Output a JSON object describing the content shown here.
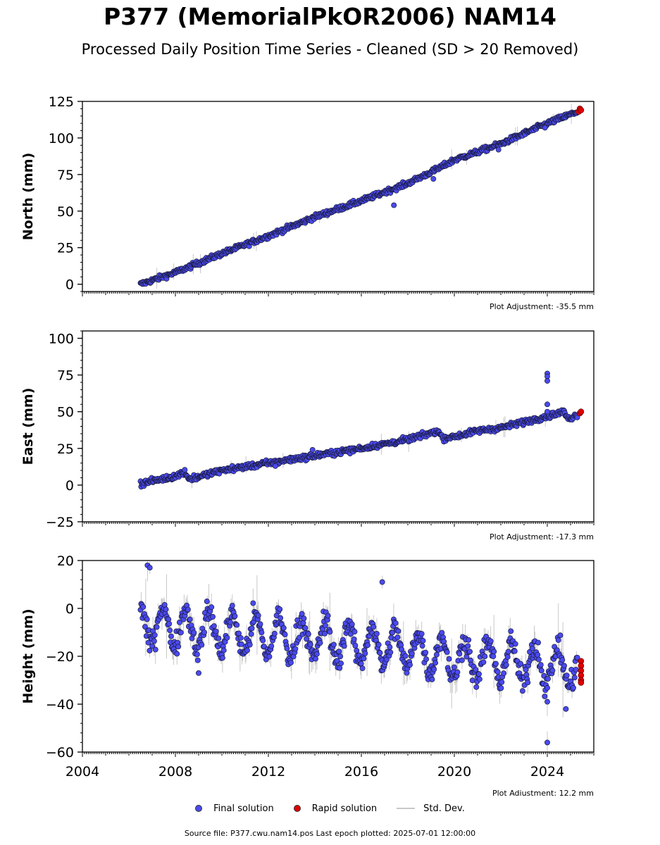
{
  "title": "P377 (MemorialPkOR2006) NAM14",
  "subtitle": "Processed Daily Position Time Series - Cleaned (SD > 20 Removed)",
  "colors": {
    "final": "#4a4af0",
    "rapid": "#e00000",
    "std": "#c8c8c8",
    "edge": "#1a1a3a"
  },
  "legend": {
    "final_label": "Final solution",
    "rapid_label": "Rapid solution",
    "std_label": "Std. Dev."
  },
  "source_note": "Source file: P377.cwu.nam14.pos  Last epoch plotted: 2025-07-01 12:00:00",
  "chart_data": [
    {
      "type": "scatter",
      "ylabel": "North (mm)",
      "xlim": [
        2004,
        2026
      ],
      "ylim": [
        -5,
        125
      ],
      "yticks": [
        0,
        25,
        50,
        75,
        100,
        125
      ],
      "adjustment": "Plot Adjustment: -35.5 mm",
      "show_xticklabels": false,
      "series": [
        {
          "name": "Final solution",
          "trend": [
            [
              2006.5,
              0
            ],
            [
              2008,
              8
            ],
            [
              2010,
              21
            ],
            [
              2012,
              33
            ],
            [
              2014,
              46
            ],
            [
              2016,
              57
            ],
            [
              2018,
              69
            ],
            [
              2019.3,
              79
            ],
            [
              2020,
              85
            ],
            [
              2022,
              96
            ],
            [
              2024,
              110
            ],
            [
              2025.3,
              118
            ]
          ],
          "noise": 1.2,
          "outliers": [
            [
              2017.4,
              54
            ],
            [
              2019.1,
              72
            ],
            [
              2021.9,
              92
            ],
            [
              2023.9,
              107
            ]
          ]
        },
        {
          "name": "Rapid solution",
          "points": [
            [
              2025.35,
              118
            ],
            [
              2025.4,
              120
            ],
            [
              2025.45,
              119
            ]
          ]
        }
      ]
    },
    {
      "type": "scatter",
      "ylabel": "East (mm)",
      "xlim": [
        2004,
        2026
      ],
      "ylim": [
        -25,
        105
      ],
      "yticks": [
        -25,
        0,
        25,
        50,
        75,
        100
      ],
      "adjustment": "Plot Adjustment: -17.3 mm",
      "show_xticklabels": false,
      "series": [
        {
          "name": "Final solution",
          "trend": [
            [
              2006.5,
              1
            ],
            [
              2008,
              6
            ],
            [
              2008.4,
              9
            ],
            [
              2008.6,
              4
            ],
            [
              2010,
              10
            ],
            [
              2012,
              15
            ],
            [
              2014,
              20
            ],
            [
              2016,
              25
            ],
            [
              2018,
              31
            ],
            [
              2019.3,
              37
            ],
            [
              2019.5,
              32
            ],
            [
              2020,
              33
            ],
            [
              2021,
              37
            ],
            [
              2022,
              39
            ],
            [
              2023,
              43
            ],
            [
              2024,
              47
            ],
            [
              2024.7,
              50
            ],
            [
              2024.9,
              45
            ],
            [
              2025.3,
              48
            ]
          ],
          "noise": 1.3,
          "outliers": [
            [
              2024.0,
              76
            ],
            [
              2024.0,
              74
            ],
            [
              2024.0,
              71
            ],
            [
              2024.0,
              55
            ],
            [
              2024.0,
              50
            ],
            [
              2012.3,
              13
            ],
            [
              2013.9,
              24
            ]
          ]
        },
        {
          "name": "Rapid solution",
          "points": [
            [
              2025.4,
              49
            ],
            [
              2025.45,
              50
            ]
          ]
        }
      ]
    },
    {
      "type": "scatter",
      "ylabel": "Height (mm)",
      "xlim": [
        2004,
        2026
      ],
      "ylim": [
        -60,
        20
      ],
      "yticks": [
        -60,
        -40,
        -20,
        0,
        20
      ],
      "xticks": [
        2004,
        2008,
        2012,
        2016,
        2020,
        2024
      ],
      "adjustment": "Plot Adjustment: 12.2 mm",
      "show_xticklabels": true,
      "series": [
        {
          "name": "Final solution",
          "trend": [
            [
              2006.5,
              -6
            ],
            [
              2010,
              -10
            ],
            [
              2014,
              -13
            ],
            [
              2018,
              -17
            ],
            [
              2020,
              -21
            ],
            [
              2022,
              -22
            ],
            [
              2025.3,
              -25
            ]
          ],
          "seasonal_amplitude": 8,
          "noise": 3.5,
          "outliers": [
            [
              2006.8,
              18
            ],
            [
              2006.9,
              17
            ],
            [
              2016.9,
              11
            ],
            [
              2024.0,
              -56
            ],
            [
              2024.0,
              -39
            ],
            [
              2024.8,
              -42
            ],
            [
              2009.0,
              -27
            ]
          ]
        },
        {
          "name": "Rapid solution",
          "points": [
            [
              2025.45,
              -22
            ],
            [
              2025.45,
              -24
            ],
            [
              2025.45,
              -26
            ],
            [
              2025.45,
              -28
            ],
            [
              2025.45,
              -30
            ],
            [
              2025.45,
              -31
            ]
          ]
        }
      ]
    }
  ]
}
